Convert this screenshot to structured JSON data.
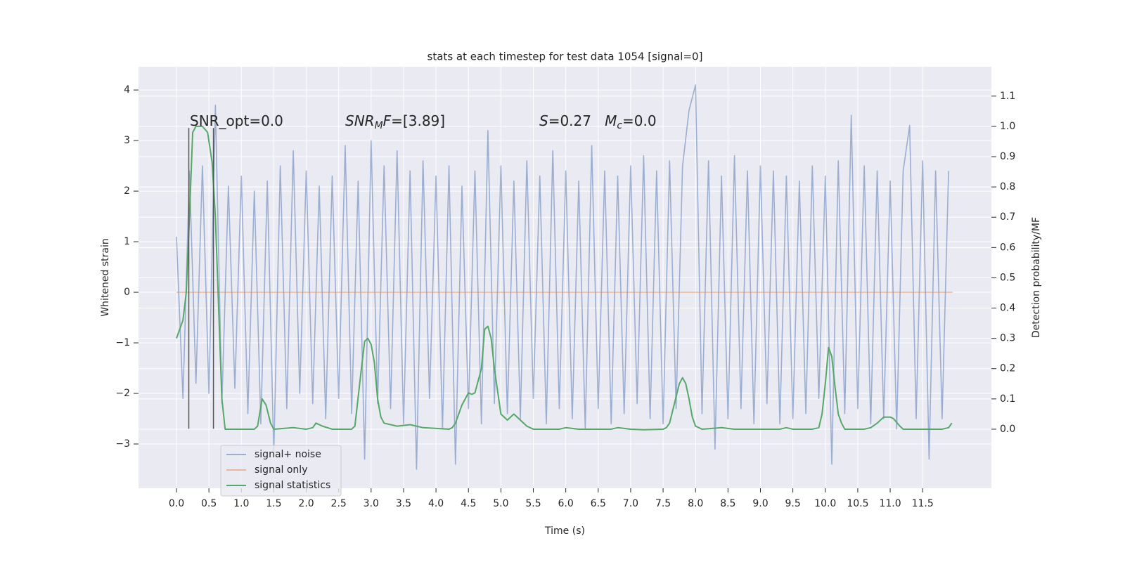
{
  "chart_data": {
    "type": "line",
    "title": "stats at each timestep for test data 1054 [signal=0]",
    "xlabel": "Time (s)",
    "ylabel": "Whitened strain",
    "y2label": "Detection probability/MF",
    "xlim": [
      -0.585,
      12.56
    ],
    "ylim": [
      -3.875,
      4.46
    ],
    "y2lim": [
      -0.195,
      1.197
    ],
    "grid": true,
    "legend": "lower left",
    "xticks": [
      {
        "value": 0,
        "label": "0.0"
      },
      0.5,
      {
        "value": 1,
        "label": "1.0"
      },
      1.5,
      {
        "value": 2,
        "label": "2.0"
      },
      2.5,
      {
        "value": 3,
        "label": "3.0"
      },
      3.5,
      {
        "value": 4,
        "label": "4.0"
      },
      4.5,
      {
        "value": 5,
        "label": "5.0"
      },
      5.5,
      {
        "value": 6,
        "label": "6.0"
      },
      6.5,
      {
        "value": 7,
        "label": "7.0"
      },
      7.5,
      {
        "value": 8,
        "label": "8.0"
      },
      8.5,
      {
        "value": 9,
        "label": "9.0"
      },
      9.5,
      {
        "value": 10,
        "label": "10.0"
      },
      10.5,
      {
        "value": 11,
        "label": "11.0"
      },
      11.5
    ],
    "yticks": [
      {
        "value": -3,
        "label": "−3"
      },
      {
        "value": -2,
        "label": "−2"
      },
      {
        "value": -1,
        "label": "−1"
      },
      0,
      1,
      2,
      3,
      4
    ],
    "y2ticks": [
      {
        "value": 0,
        "label": "0.0"
      },
      0.1,
      0.2,
      0.3,
      0.4,
      0.5,
      0.6,
      0.7,
      0.8,
      0.9,
      {
        "value": 1,
        "label": "1.0"
      },
      1.1
    ],
    "annotations": [
      {
        "parts": [
          {
            "text": "SNR_opt=0.0"
          }
        ]
      },
      {
        "parts": [
          {
            "text": "SNR",
            "style": "italic"
          },
          {
            "text": "M",
            "style": "sub"
          },
          {
            "text": "F",
            "style": "italic"
          },
          {
            "text": "=[3.89]"
          }
        ]
      },
      {
        "parts": [
          {
            "text": "S",
            "style": "italic"
          },
          {
            "text": "=0.27   "
          },
          {
            "text": "M",
            "style": "italic"
          },
          {
            "text": "c",
            "style": "sub"
          },
          {
            "text": "=0.0"
          }
        ]
      }
    ],
    "vlines": {
      "x": [
        0.19,
        0.57
      ],
      "ymin": -2.7,
      "ymax": 3.25,
      "color": "#555555"
    },
    "series": [
      {
        "name": "signal+ noise",
        "color": "#4c72b0",
        "alpha": 0.5,
        "x": [
          0,
          0.1,
          0.2,
          0.3,
          0.4,
          0.5,
          0.6,
          0.7,
          0.8,
          0.9,
          1,
          1.1,
          1.2,
          1.3,
          1.4,
          1.5,
          1.6,
          1.7,
          1.8,
          1.9,
          2,
          2.1,
          2.2,
          2.3,
          2.4,
          2.5,
          2.6,
          2.7,
          2.8,
          2.9,
          3,
          3.1,
          3.2,
          3.3,
          3.4,
          3.5,
          3.6,
          3.7,
          3.8,
          3.9,
          4,
          4.1,
          4.2,
          4.3,
          4.4,
          4.5,
          4.6,
          4.7,
          4.8,
          4.9,
          5,
          5.1,
          5.2,
          5.3,
          5.4,
          5.5,
          5.6,
          5.7,
          5.8,
          5.9,
          6,
          6.1,
          6.2,
          6.3,
          6.4,
          6.5,
          6.6,
          6.7,
          6.8,
          6.9,
          7,
          7.1,
          7.2,
          7.3,
          7.4,
          7.5,
          7.6,
          7.7,
          7.8,
          7.9,
          8,
          8.1,
          8.2,
          8.3,
          8.4,
          8.5,
          8.6,
          8.7,
          8.8,
          8.9,
          9,
          9.1,
          9.2,
          9.3,
          9.4,
          9.5,
          9.6,
          9.7,
          9.8,
          9.9,
          10,
          10.1,
          10.2,
          10.3,
          10.4,
          10.5,
          10.6,
          10.7,
          10.8,
          10.9,
          11,
          11.1,
          11.2,
          11.3,
          11.4,
          11.5,
          11.6,
          11.7,
          11.8,
          11.9
        ],
        "values": [
          1.1,
          -2.1,
          2.4,
          -1.8,
          2.5,
          -2.0,
          3.7,
          -2.2,
          2.1,
          -1.9,
          2.3,
          -2.4,
          2.0,
          -2.6,
          2.2,
          -3.2,
          2.5,
          -2.3,
          2.8,
          -2.0,
          2.4,
          -2.2,
          2.1,
          -2.5,
          2.3,
          -2.1,
          2.9,
          -2.4,
          2.2,
          -3.3,
          3.0,
          -2.2,
          2.5,
          -2.3,
          2.8,
          -2.6,
          2.4,
          -3.5,
          2.6,
          -2.1,
          2.3,
          -2.7,
          2.5,
          -3.4,
          2.1,
          -2.3,
          2.4,
          -2.6,
          3.2,
          -2.2,
          2.5,
          -2.4,
          2.2,
          -2.5,
          2.6,
          -2.1,
          2.3,
          -2.6,
          2.8,
          -2.3,
          2.4,
          -2.5,
          2.2,
          -2.7,
          2.9,
          -2.3,
          2.4,
          -2.6,
          2.3,
          -2.4,
          2.5,
          -2.2,
          2.7,
          -2.5,
          2.4,
          -2.6,
          2.6,
          -2.3,
          2.5,
          3.6,
          4.1,
          -2.4,
          2.6,
          -3.1,
          2.3,
          -2.5,
          2.7,
          -2.3,
          2.4,
          -2.6,
          2.5,
          -2.2,
          2.4,
          -2.6,
          2.3,
          -2.5,
          2.2,
          -2.4,
          2.5,
          -2.1,
          2.3,
          -3.4,
          2.6,
          -2.4,
          3.5,
          -2.3,
          2.5,
          -2.6,
          2.4,
          -2.5,
          2.2,
          -2.7,
          2.4,
          3.3,
          -2.5,
          2.6,
          -3.3,
          2.4,
          -2.5,
          2.4
        ]
      },
      {
        "name": "signal only",
        "color": "#dd8452",
        "alpha": 0.5,
        "x": [
          0,
          11.96
        ],
        "values": [
          0,
          0
        ]
      },
      {
        "name": "signal statistics",
        "color": "#55a868",
        "alpha": 1,
        "axis": "y2",
        "x": [
          0,
          0.1,
          0.15,
          0.2,
          0.25,
          0.3,
          0.4,
          0.48,
          0.55,
          0.6,
          0.65,
          0.7,
          0.75,
          0.9,
          1.2,
          1.25,
          1.32,
          1.38,
          1.45,
          1.5,
          1.8,
          2,
          2.1,
          2.15,
          2.25,
          2.4,
          2.7,
          2.75,
          2.85,
          2.9,
          2.95,
          3,
          3.05,
          3.1,
          3.15,
          3.2,
          3.4,
          3.6,
          3.8,
          4.2,
          4.25,
          4.3,
          4.4,
          4.5,
          4.55,
          4.6,
          4.7,
          4.75,
          4.8,
          4.85,
          4.9,
          5,
          5.1,
          5.2,
          5.3,
          5.4,
          5.5,
          5.9,
          6,
          6.2,
          6.5,
          6.7,
          6.8,
          7,
          7.2,
          7.5,
          7.55,
          7.6,
          7.75,
          7.8,
          7.85,
          7.9,
          7.95,
          8,
          8.1,
          8.4,
          8.6,
          9.3,
          9.4,
          9.5,
          9.8,
          9.9,
          9.95,
          10,
          10.05,
          10.1,
          10.15,
          10.2,
          10.25,
          10.3,
          10.6,
          10.7,
          10.8,
          10.9,
          11,
          11.05,
          11.15,
          11.2,
          11.5,
          11.8,
          11.9,
          11.95
        ],
        "values": [
          0.3,
          0.36,
          0.45,
          0.7,
          0.98,
          1.0,
          1.0,
          0.98,
          0.88,
          0.7,
          0.4,
          0.1,
          0.0,
          0.0,
          0.0,
          0.01,
          0.1,
          0.08,
          0.02,
          0.0,
          0.005,
          0.0,
          0.005,
          0.02,
          0.01,
          0.0,
          0.0,
          0.01,
          0.2,
          0.29,
          0.3,
          0.28,
          0.22,
          0.1,
          0.04,
          0.02,
          0.01,
          0.015,
          0.005,
          0.0,
          0.005,
          0.02,
          0.08,
          0.12,
          0.115,
          0.12,
          0.2,
          0.33,
          0.34,
          0.3,
          0.2,
          0.05,
          0.03,
          0.05,
          0.03,
          0.01,
          0.0,
          0.0,
          0.005,
          0.0,
          0.0,
          0.0,
          0.005,
          0.0,
          -0.002,
          0.0,
          0.005,
          0.02,
          0.15,
          0.17,
          0.15,
          0.1,
          0.04,
          0.01,
          0.0,
          0.005,
          0.0,
          0.0,
          0.005,
          0.0,
          0.0,
          0.005,
          0.05,
          0.15,
          0.27,
          0.24,
          0.14,
          0.05,
          0.02,
          0.0,
          0.0,
          0.005,
          0.02,
          0.04,
          0.04,
          0.035,
          0.01,
          0.0,
          0.0,
          0.0,
          0.005,
          0.02
        ]
      }
    ]
  }
}
